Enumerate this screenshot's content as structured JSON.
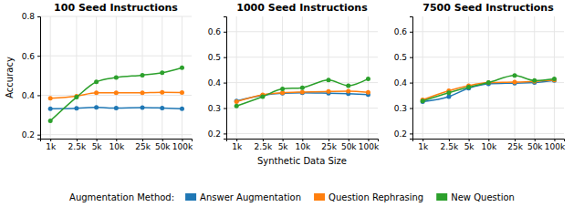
{
  "chart_data": [
    {
      "type": "line",
      "title": "100 Seed Instructions",
      "ylabel": "Accuracy",
      "x": [
        1000,
        2500,
        5000,
        10000,
        25000,
        50000,
        100000
      ],
      "log": "x",
      "xlim": [
        700,
        140000
      ],
      "xticks": [
        {
          "value": 1000,
          "label": "1k"
        },
        {
          "value": 2500,
          "label": "2.5k"
        },
        {
          "value": 5000,
          "label": "5k"
        },
        {
          "value": 10000,
          "label": "10k"
        },
        {
          "value": 25000,
          "label": "25k"
        },
        {
          "value": 50000,
          "label": "50k"
        },
        {
          "value": 100000,
          "label": "100k"
        }
      ],
      "ylim": [
        0.18,
        0.8
      ],
      "yticks": [
        0.2,
        0.4,
        0.6,
        0.8
      ],
      "grid": true,
      "marker": "circle",
      "legend": "bottom",
      "legend_title": "Augmentation Method:",
      "series": [
        {
          "name": "Answer Augmentation",
          "values": [
            0.332,
            0.334,
            0.338,
            0.335,
            0.337,
            0.335,
            0.332
          ]
        },
        {
          "name": "Question Rephrasing",
          "values": [
            0.385,
            0.395,
            0.412,
            0.412,
            0.413,
            0.415,
            0.414
          ]
        },
        {
          "name": "New Question",
          "values": [
            0.27,
            0.39,
            0.468,
            0.49,
            0.502,
            0.514,
            0.54
          ]
        }
      ]
    },
    {
      "type": "line",
      "title": "1000 Seed Instructions",
      "xlabel": "Synthetic Data Size",
      "x": [
        1000,
        2500,
        5000,
        10000,
        25000,
        50000,
        100000
      ],
      "log": "x",
      "xlim": [
        700,
        140000
      ],
      "xticks": [
        {
          "value": 1000,
          "label": "1k"
        },
        {
          "value": 2500,
          "label": "2.5k"
        },
        {
          "value": 5000,
          "label": "5k"
        },
        {
          "value": 10000,
          "label": "10k"
        },
        {
          "value": 25000,
          "label": "25k"
        },
        {
          "value": 50000,
          "label": "50k"
        },
        {
          "value": 100000,
          "label": "100k"
        }
      ],
      "ylim": [
        0.18,
        0.66
      ],
      "yticks": [
        0.2,
        0.3,
        0.4,
        0.5,
        0.6
      ],
      "grid": true,
      "marker": "circle",
      "series": [
        {
          "values": [
            0.328,
            0.35,
            0.358,
            0.36,
            0.358,
            0.356,
            0.353
          ]
        },
        {
          "values": [
            0.325,
            0.352,
            0.36,
            0.363,
            0.365,
            0.366,
            0.362
          ]
        },
        {
          "values": [
            0.308,
            0.345,
            0.375,
            0.38,
            0.41,
            0.388,
            0.415
          ]
        }
      ]
    },
    {
      "type": "line",
      "title": "7500 Seed Instructions",
      "x": [
        1000,
        2500,
        5000,
        10000,
        25000,
        50000,
        100000
      ],
      "log": "x",
      "xlim": [
        700,
        140000
      ],
      "xticks": [
        {
          "value": 1000,
          "label": "1k"
        },
        {
          "value": 2500,
          "label": "2.5k"
        },
        {
          "value": 5000,
          "label": "5k"
        },
        {
          "value": 10000,
          "label": "10k"
        },
        {
          "value": 25000,
          "label": "25k"
        },
        {
          "value": 50000,
          "label": "50k"
        },
        {
          "value": 100000,
          "label": "100k"
        }
      ],
      "ylim": [
        0.18,
        0.66
      ],
      "yticks": [
        0.2,
        0.3,
        0.4,
        0.5,
        0.6
      ],
      "grid": true,
      "marker": "circle",
      "series": [
        {
          "values": [
            0.325,
            0.345,
            0.378,
            0.395,
            0.398,
            0.4,
            0.408
          ]
        },
        {
          "values": [
            0.332,
            0.368,
            0.388,
            0.4,
            0.402,
            0.405,
            0.41
          ]
        },
        {
          "values": [
            0.328,
            0.36,
            0.382,
            0.4,
            0.428,
            0.408,
            0.415
          ]
        }
      ]
    }
  ]
}
